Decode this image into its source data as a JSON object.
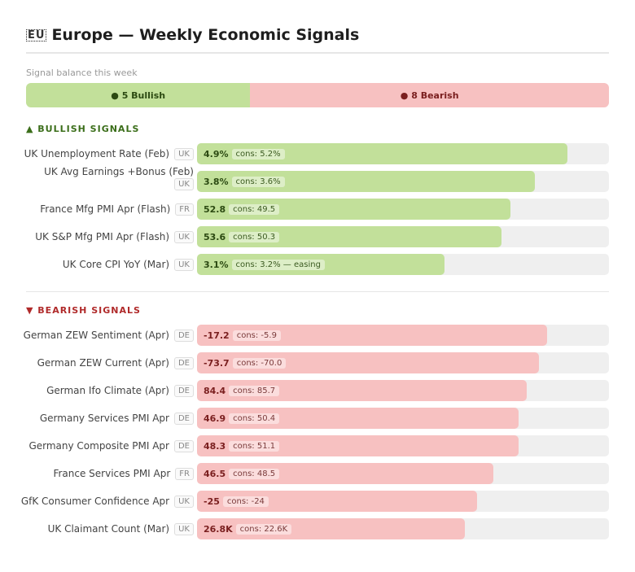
{
  "header": {
    "flag_text": "EU",
    "title": "Europe — Weekly Economic Signals"
  },
  "balance": {
    "label": "Signal balance this week",
    "bullish_text": "● 5 Bullish",
    "bearish_text": "● 8 Bearish",
    "bullish_count": 5,
    "bearish_count": 8
  },
  "colors": {
    "bull_fill": "#c2e09a",
    "bear_fill": "#f7c1c1",
    "bull_text": "#3b6e1a",
    "bear_text": "#b02a2a"
  },
  "bullish": {
    "heading": "▲ BULLISH SIGNALS",
    "items": [
      {
        "name": "UK Unemployment Rate (Feb)",
        "country": "UK",
        "value": "4.9%",
        "cons": "cons: 5.2%",
        "strength": 0.9
      },
      {
        "name": "UK Avg Earnings +Bonus (Feb)",
        "country": "UK",
        "value": "3.8%",
        "cons": "cons: 3.6%",
        "strength": 0.82
      },
      {
        "name": "France Mfg PMI Apr (Flash)",
        "country": "FR",
        "value": "52.8",
        "cons": "cons: 49.5",
        "strength": 0.76
      },
      {
        "name": "UK S&P Mfg PMI Apr (Flash)",
        "country": "UK",
        "value": "53.6",
        "cons": "cons: 50.3",
        "strength": 0.74
      },
      {
        "name": "UK Core CPI YoY (Mar)",
        "country": "UK",
        "value": "3.1%",
        "cons": "cons: 3.2% — easing",
        "strength": 0.6
      }
    ]
  },
  "bearish": {
    "heading": "▼ BEARISH SIGNALS",
    "items": [
      {
        "name": "German ZEW Sentiment (Apr)",
        "country": "DE",
        "value": "-17.2",
        "cons": "cons: -5.9",
        "strength": 0.85
      },
      {
        "name": "German ZEW Current (Apr)",
        "country": "DE",
        "value": "-73.7",
        "cons": "cons: -70.0",
        "strength": 0.83
      },
      {
        "name": "German Ifo Climate (Apr)",
        "country": "DE",
        "value": "84.4",
        "cons": "cons: 85.7",
        "strength": 0.8
      },
      {
        "name": "Germany Services PMI Apr",
        "country": "DE",
        "value": "46.9",
        "cons": "cons: 50.4",
        "strength": 0.78
      },
      {
        "name": "Germany Composite PMI Apr",
        "country": "DE",
        "value": "48.3",
        "cons": "cons: 51.1",
        "strength": 0.78
      },
      {
        "name": "France Services PMI Apr",
        "country": "FR",
        "value": "46.5",
        "cons": "cons: 48.5",
        "strength": 0.72
      },
      {
        "name": "GfK Consumer Confidence Apr",
        "country": "UK",
        "value": "-25",
        "cons": "cons: -24",
        "strength": 0.68
      },
      {
        "name": "UK Claimant Count (Mar)",
        "country": "UK",
        "value": "26.8K",
        "cons": "cons: 22.6K",
        "strength": 0.65
      }
    ]
  }
}
